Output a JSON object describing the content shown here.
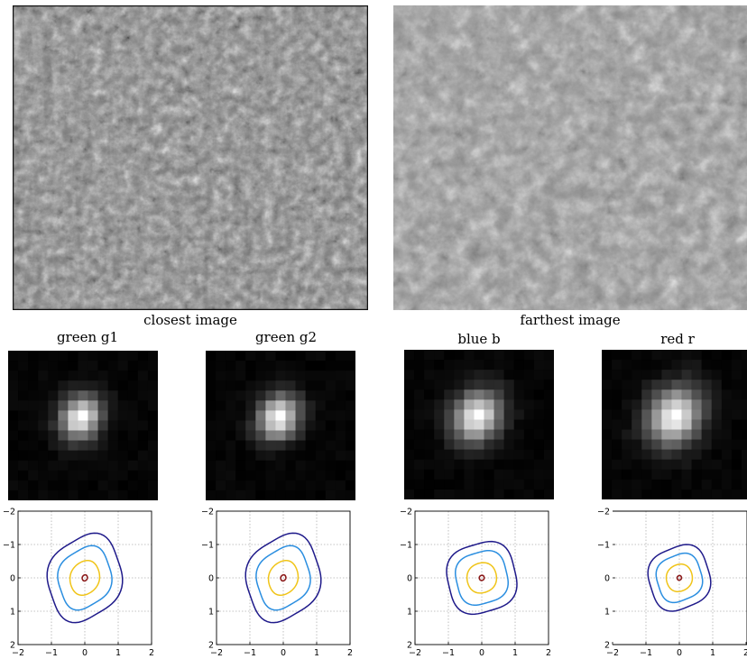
{
  "images": [
    {
      "caption": "closest image"
    },
    {
      "caption": "farthest image"
    }
  ],
  "panels": [
    {
      "title": "green g1",
      "contour_scales": [
        1.0,
        0.72,
        0.4,
        0.07
      ],
      "tilt_deg": 20,
      "aspect": 1.22
    },
    {
      "title": "green g2",
      "contour_scales": [
        1.0,
        0.72,
        0.4,
        0.07
      ],
      "tilt_deg": 20,
      "aspect": 1.22
    },
    {
      "title": "blue b",
      "contour_scales": [
        1.0,
        0.75,
        0.42,
        0.07
      ],
      "tilt_deg": 30,
      "aspect": 1.05
    },
    {
      "title": "red r",
      "contour_scales": [
        1.0,
        0.74,
        0.42,
        0.07
      ],
      "tilt_deg": 25,
      "aspect": 1.08
    }
  ],
  "contour_axes": {
    "xlim": [
      -2,
      2
    ],
    "ylim": [
      -2,
      2
    ],
    "xticks": [
      "−2",
      "−1",
      "0",
      "1",
      "2"
    ],
    "yticks": [
      "−2",
      "−1",
      "0",
      "1",
      "2"
    ],
    "grid": true
  },
  "colors": {
    "level1": "#1f1a8a",
    "level2": "#2a8ee0",
    "level3": "#f0c418",
    "level4": "#8b1a1a",
    "grid": "#b0b0b0"
  }
}
